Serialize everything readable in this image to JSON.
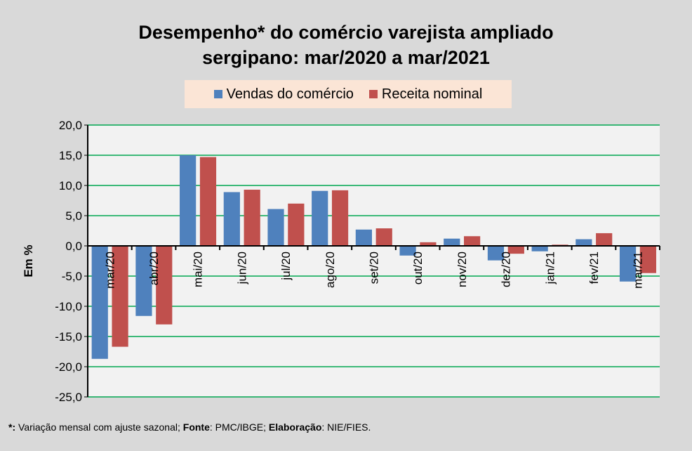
{
  "chart_data": {
    "type": "bar",
    "title": [
      "Desempenho* do comércio varejista ampliado",
      "sergipano: mar/2020 a mar/2021"
    ],
    "ylabel": "Em %",
    "ylim": [
      -25,
      20
    ],
    "yticks": [
      "20,0",
      "15,0",
      "10,0",
      "5,0",
      "0,0",
      "-5,0",
      "-10,0",
      "-15,0",
      "-20,0",
      "-25,0"
    ],
    "grid": true,
    "legend_position": "top",
    "categories": [
      "mar/20",
      "abr/20",
      "mai/20",
      "jun/20",
      "jul/20",
      "ago/20",
      "set/20",
      "out/20",
      "nov/20",
      "dez/20",
      "jan/21",
      "fev/21",
      "mar/21"
    ],
    "series": [
      {
        "name": "Vendas do comércio",
        "color": "#4f81bd",
        "values": [
          -18.7,
          -11.6,
          15.0,
          8.9,
          6.1,
          9.1,
          2.7,
          -1.6,
          1.2,
          -2.4,
          -0.9,
          1.1,
          -5.9
        ]
      },
      {
        "name": "Receita nominal",
        "color": "#c0504d",
        "values": [
          -16.7,
          -13.0,
          14.7,
          9.3,
          7.0,
          9.2,
          2.9,
          0.6,
          1.6,
          -1.3,
          0.2,
          2.1,
          -4.5
        ]
      }
    ]
  },
  "footnote": {
    "star": "*:",
    "text1": " Variação mensal com ajuste sazonal; ",
    "fonte_label": "Fonte",
    "text2": ": PMC/IBGE; ",
    "elab_label": "Elaboração",
    "text3": ": NIE/FIES."
  }
}
